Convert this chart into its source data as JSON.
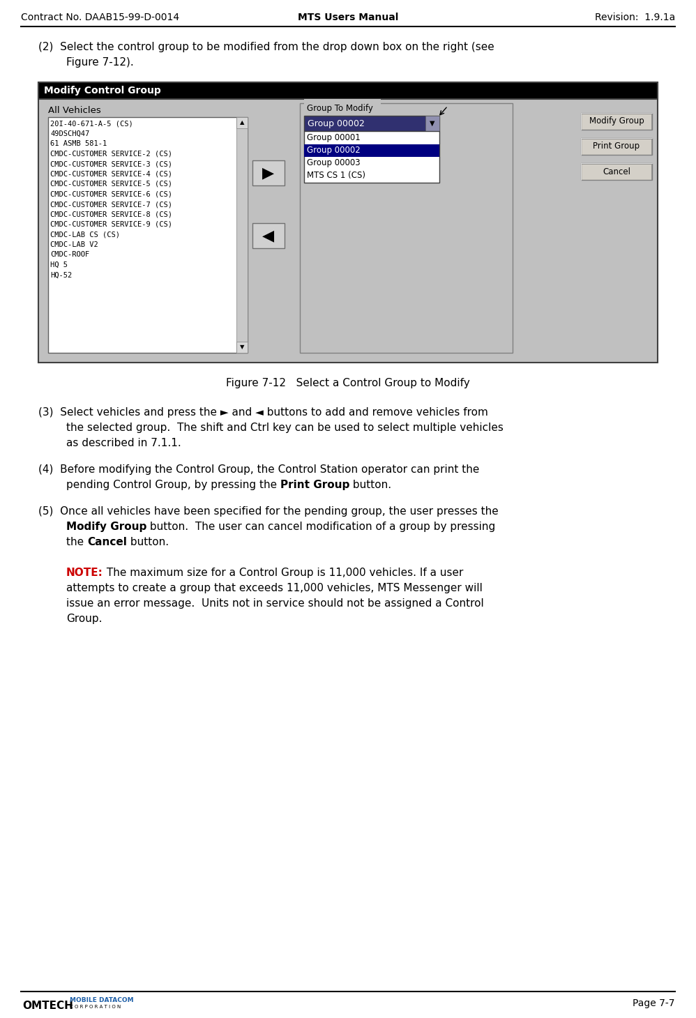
{
  "header_left": "Contract No. DAAB15-99-D-0014",
  "header_center": "MTS Users Manual",
  "header_right": "Revision:  1.9.1a",
  "footer_right": "Page 7-7",
  "figure_caption": "Figure 7-12   Select a Control Group to Modify",
  "note_color": "#CC0000",
  "bg_color": "#ffffff",
  "text_color": "#000000",
  "dialog_title": "Modify Control Group",
  "dialog_title_bg": "#000000",
  "dialog_title_color": "#ffffff",
  "dialog_bg": "#c0c0c0",
  "all_vehicles_label": "All Vehicles",
  "group_to_modify_label": "Group To Modify",
  "vehicle_list": [
    "20I-40-671-A-5 (CS)",
    "49DSCHQ47",
    "61 ASMB 581-1",
    "CMDC-CUSTOMER SERVICE-2 (CS)",
    "CMDC-CUSTOMER SERVICE-3 (CS)",
    "CMDC-CUSTOMER SERVICE-4 (CS)",
    "CMDC-CUSTOMER SERVICE-5 (CS)",
    "CMDC-CUSTOMER SERVICE-6 (CS)",
    "CMDC-CUSTOMER SERVICE-7 (CS)",
    "CMDC-CUSTOMER SERVICE-8 (CS)",
    "CMDC-CUSTOMER SERVICE-9 (CS)",
    "CMDC-LAB CS (CS)",
    "CMDC-LAB V2",
    "CMDC-ROOF",
    "HQ 5",
    "HQ-52"
  ],
  "dropdown_selected": "Group 00002",
  "dropdown_items": [
    "Group 00001",
    "Group 00002",
    "Group 00003",
    "MTS CS 1 (CS)"
  ],
  "dropdown_highlighted": "Group 00002",
  "button_modify": "Modify Group",
  "button_print": "Print Group",
  "button_cancel": "Cancel",
  "figW": 9.98,
  "figH": 14.6,
  "dpi": 100
}
